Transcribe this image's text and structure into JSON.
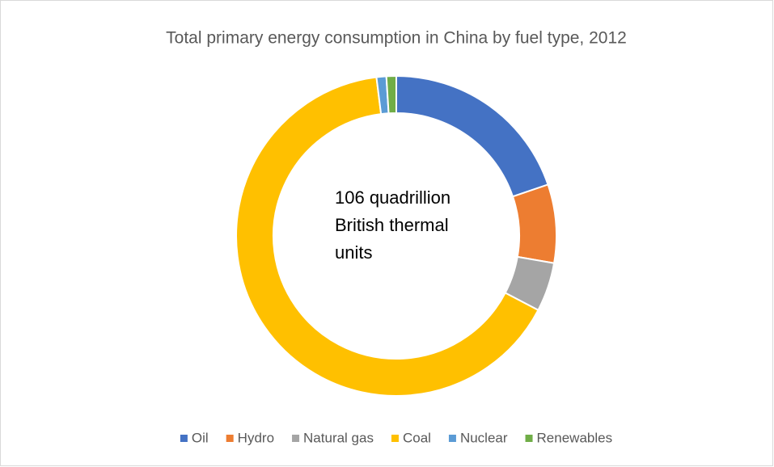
{
  "chart_data": {
    "type": "donut",
    "title": "Total primary energy consumption in China by fuel type, 2012",
    "annotation": "106 quadrillion British thermal units",
    "categories": [
      "Oil",
      "Hydro",
      "Natural gas",
      "Coal",
      "Nuclear",
      "Renewables"
    ],
    "values": [
      20,
      8,
      5,
      66,
      1,
      1
    ],
    "colors": [
      "#4472c4",
      "#ed7d31",
      "#a5a5a5",
      "#ffc000",
      "#5b9bd5",
      "#70ad47"
    ],
    "legend": "bottom"
  }
}
